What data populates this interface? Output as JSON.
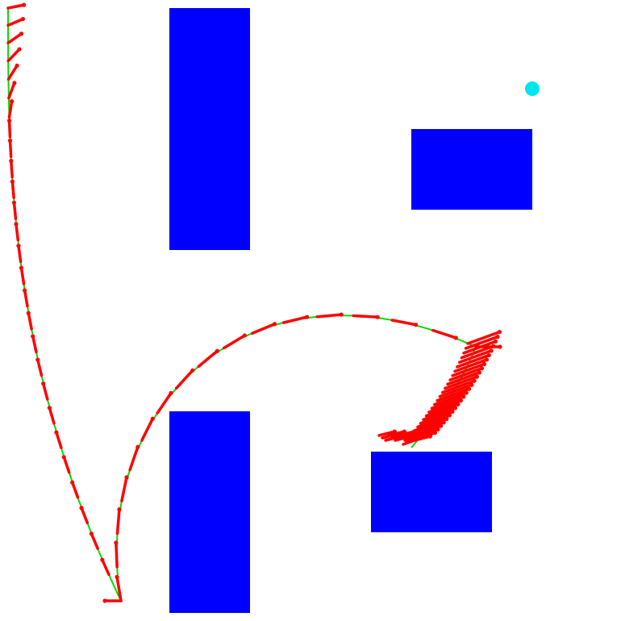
{
  "colors": {
    "background": "#ffffff",
    "obstacle": "#0000ff",
    "path": "#00dd00",
    "pose_arrow": "#ff0000",
    "goal": "#00e5ee"
  },
  "legend": {
    "obstacles": "blue-rectangles",
    "path": "green-trajectory",
    "poses": "red-heading-arrows",
    "goal": "cyan-goal-marker"
  }
}
